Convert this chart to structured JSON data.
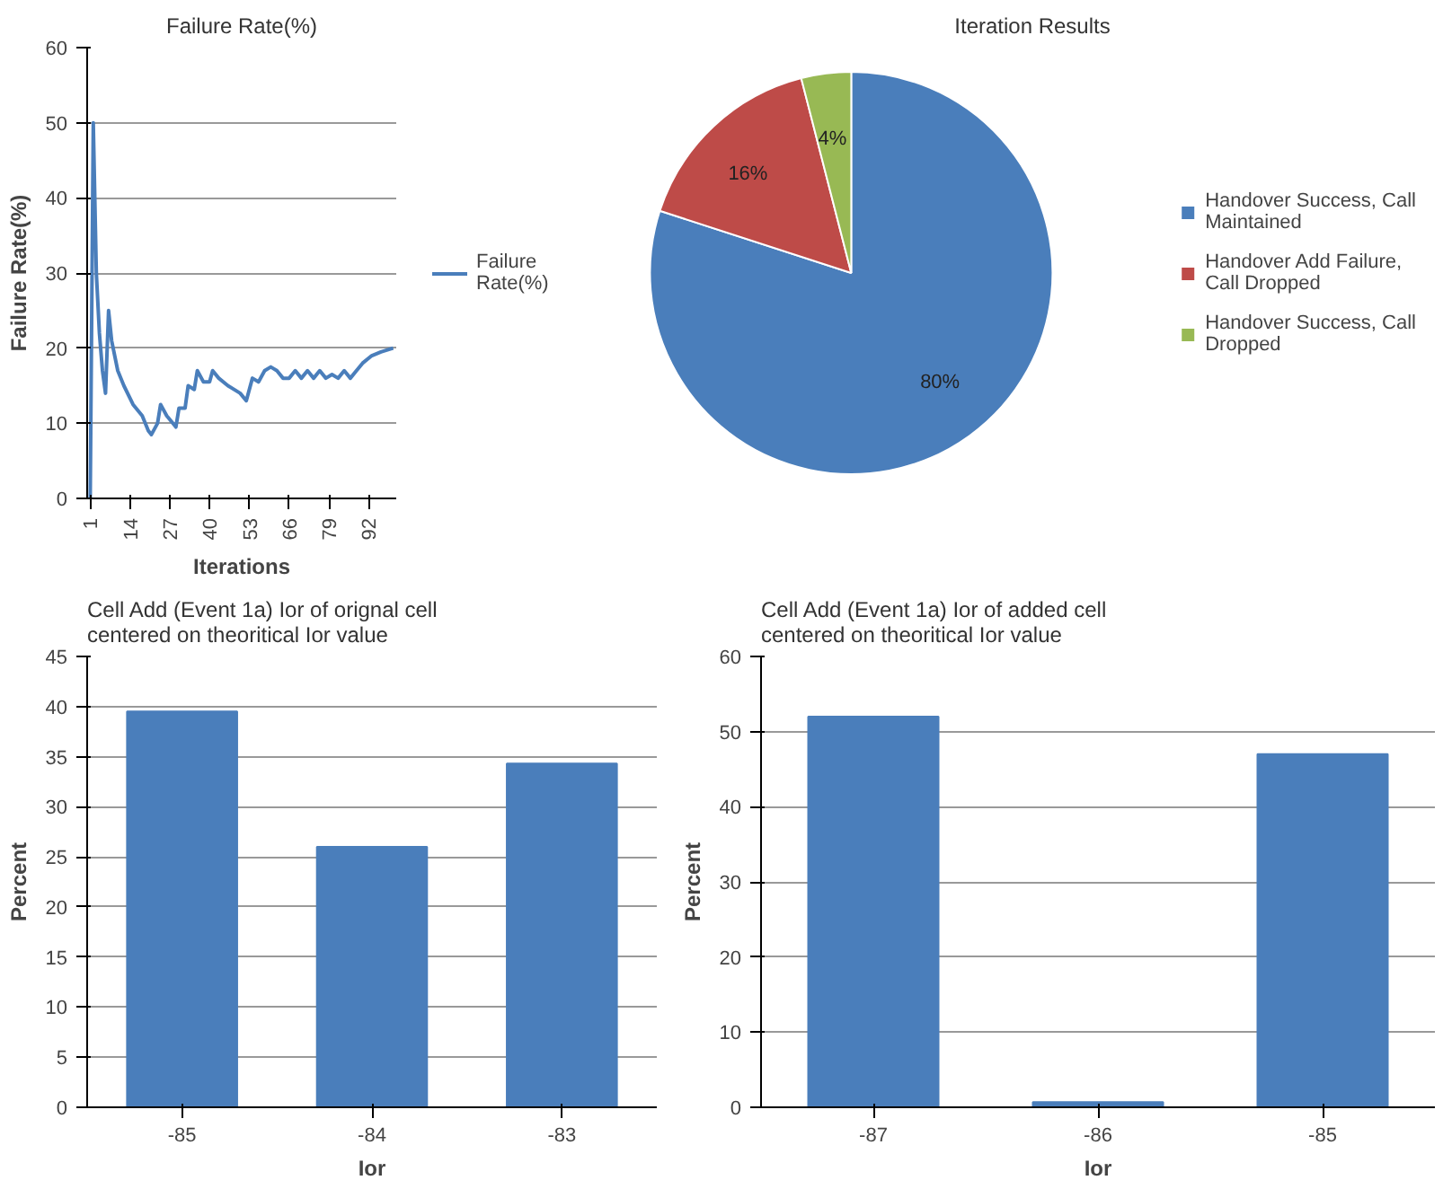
{
  "chart_data": [
    {
      "type": "line",
      "title": "Failure Rate(%)",
      "xlabel": "Iterations",
      "ylabel": "Failure Rate(%)",
      "x": [
        1,
        2,
        3,
        4,
        5,
        6,
        7,
        8,
        10,
        12,
        15,
        18,
        20,
        21,
        23,
        24,
        26,
        28,
        29,
        30,
        32,
        33,
        35,
        36,
        38,
        40,
        41,
        43,
        46,
        50,
        52,
        54,
        56,
        58,
        60,
        62,
        64,
        66,
        68,
        70,
        72,
        74,
        76,
        78,
        80,
        82,
        84,
        86,
        88,
        90,
        93,
        96,
        100
      ],
      "series": [
        {
          "name": "Failure Rate(%)",
          "color": "#4a7ebb",
          "values": [
            0,
            50,
            30,
            22,
            17,
            14,
            25,
            21,
            17,
            15,
            12.5,
            11,
            9,
            8.5,
            10,
            12.5,
            11,
            10,
            9.5,
            12,
            12,
            15,
            14.5,
            17,
            15.5,
            15.5,
            17,
            16,
            15,
            14,
            13,
            16,
            15.5,
            17,
            17.5,
            17,
            16,
            16,
            17,
            16,
            17,
            16,
            17,
            16,
            16.5,
            16,
            17,
            16,
            17,
            18,
            19,
            19.5,
            20
          ]
        }
      ],
      "xlim": [
        0,
        101
      ],
      "xticks": [
        1,
        14,
        27,
        40,
        53,
        66,
        79,
        92
      ],
      "ylim": [
        0,
        60
      ],
      "yticks": [
        0,
        10,
        20,
        30,
        40,
        50,
        60
      ],
      "grid": "y",
      "legend": "right",
      "marker": "none",
      "line_style": "solid"
    },
    {
      "type": "pie",
      "title": "Iteration Results",
      "categories": [
        "Handover Success, Call Maintained",
        "Handover Add Failure, Call Dropped",
        "Handover Success, Call Dropped"
      ],
      "values": [
        80,
        16,
        4
      ],
      "colors": [
        "#4a7ebb",
        "#be4b48",
        "#98b954"
      ],
      "value_labels": [
        "80%",
        "16%",
        "4%"
      ],
      "legend": "right"
    },
    {
      "type": "bar",
      "title": "Cell Add (Event 1a) Ior of orignal cell centered on theoritical Ior value",
      "xlabel": "Ior",
      "ylabel": "Percent",
      "categories": [
        "-85",
        "-84",
        "-83"
      ],
      "values": [
        39.5,
        26,
        34.3
      ],
      "color": "#4a7ebb",
      "ylim": [
        0,
        45
      ],
      "yticks": [
        0,
        5,
        10,
        15,
        20,
        25,
        30,
        35,
        40,
        45
      ],
      "grid": "y"
    },
    {
      "type": "bar",
      "title": "Cell Add (Event 1a) Ior of added cell centered on theoritical Ior value",
      "xlabel": "Ior",
      "ylabel": "Percent",
      "categories": [
        "-87",
        "-86",
        "-85"
      ],
      "values": [
        52,
        0.7,
        47
      ],
      "color": "#4a7ebb",
      "ylim": [
        0,
        60
      ],
      "yticks": [
        0,
        10,
        20,
        30,
        40,
        50,
        60
      ],
      "grid": "y"
    }
  ]
}
